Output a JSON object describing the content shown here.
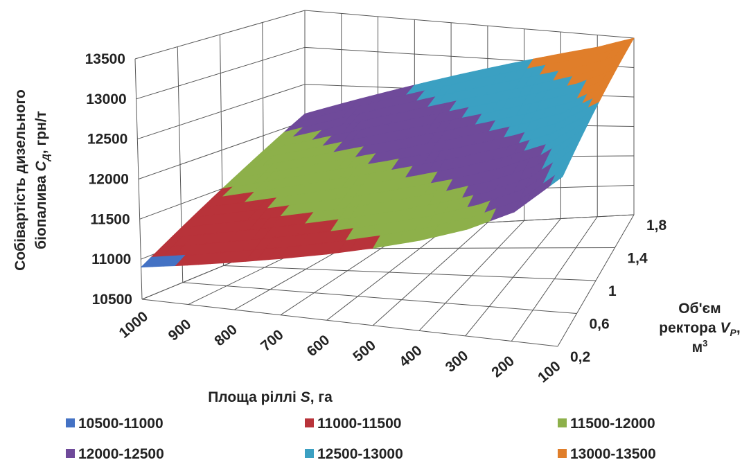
{
  "chart_data": {
    "type": "surface3d",
    "categories": [
      "1000",
      "900",
      "800",
      "700",
      "600",
      "500",
      "400",
      "300",
      "200",
      "100"
    ],
    "series": [
      {
        "name": "0,2",
        "values": [
          10900,
          10990,
          11090,
          11200,
          11320,
          11460,
          11620,
          11820,
          12100,
          12600
        ]
      },
      {
        "name": "0,6",
        "values": [
          11200,
          11305,
          11418,
          11538,
          11665,
          11808,
          11965,
          12153,
          12400,
          12825
        ]
      },
      {
        "name": "1",
        "values": [
          11500,
          11620,
          11745,
          11875,
          12010,
          12155,
          12310,
          12485,
          12700,
          13050
        ]
      },
      {
        "name": "1,4",
        "values": [
          11800,
          11935,
          12073,
          12213,
          12355,
          12503,
          12655,
          12818,
          13000,
          13275
        ]
      },
      {
        "name": "1,8",
        "values": [
          12100,
          12250,
          12400,
          12550,
          12700,
          12850,
          13000,
          13150,
          13300,
          13500
        ]
      }
    ],
    "zlim": [
      10500,
      13500
    ],
    "zticks": [
      10500,
      11000,
      11500,
      12000,
      12500,
      13000,
      13500
    ],
    "band_colors": [
      "#4472c4",
      "#b8333a",
      "#8db04a",
      "#6f4a9a",
      "#3ba0c2",
      "#e07e2a"
    ],
    "legend": [
      {
        "label": "10500-11000",
        "color": "#4472c4"
      },
      {
        "label": "11000-11500",
        "color": "#b8333a"
      },
      {
        "label": "11500-12000",
        "color": "#8db04a"
      },
      {
        "label": "12000-12500",
        "color": "#6f4a9a"
      },
      {
        "label": "12500-13000",
        "color": "#3ba0c2"
      },
      {
        "label": "13000-13500",
        "color": "#e07e2a"
      }
    ],
    "z_title": {
      "line1": "Собівартість дизельного",
      "line2": [
        "біопалива ",
        "C",
        "Д",
        ", грн/т"
      ]
    },
    "x_title": [
      "Площа ріллі ",
      "S",
      ", га"
    ],
    "depth_title": {
      "line1": "Об'єм",
      "line2": [
        "ректора ",
        "V",
        "P",
        ","
      ],
      "line3": [
        "м",
        "3"
      ]
    },
    "grid": true
  }
}
